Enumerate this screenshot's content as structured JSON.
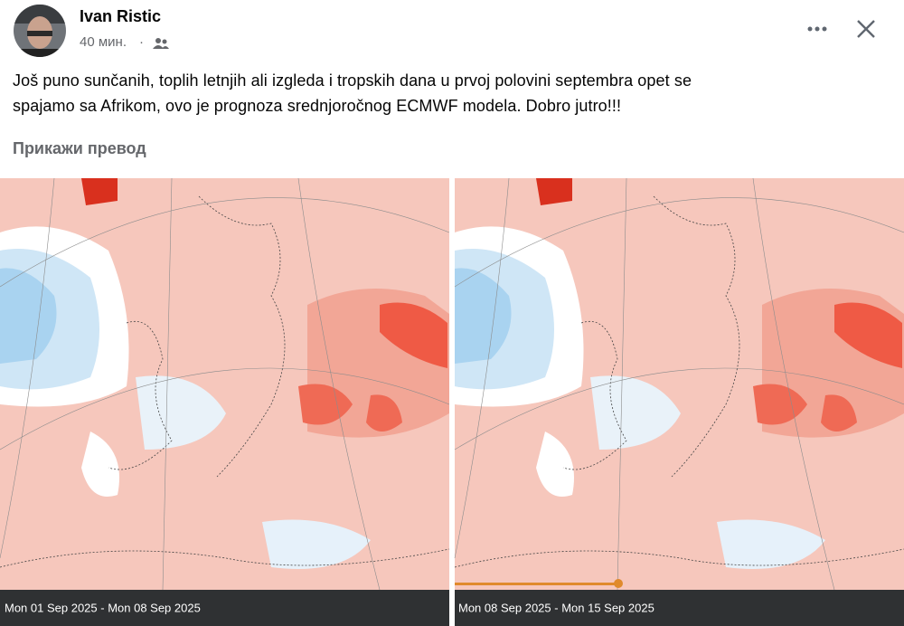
{
  "header": {
    "name": "Ivan Ristic",
    "time": "40 мин.",
    "separator": "·"
  },
  "post": {
    "lines": [
      "Još puno sunčanih, toplih letnjih ali izgleda i tropskih dana u prvoj polovini septembra opet se",
      "spajamo sa Afrikom, ovo je prognoza srednjoročnog ECMWF modela. Dobro jutro!!!"
    ],
    "translate": "Прикажи превод"
  },
  "images": [
    {
      "caption": "Mon 01 Sep 2025 - Mon 08 Sep 2025"
    },
    {
      "caption": "Mon 08 Sep 2025 - Mon 15 Sep 2025"
    }
  ]
}
